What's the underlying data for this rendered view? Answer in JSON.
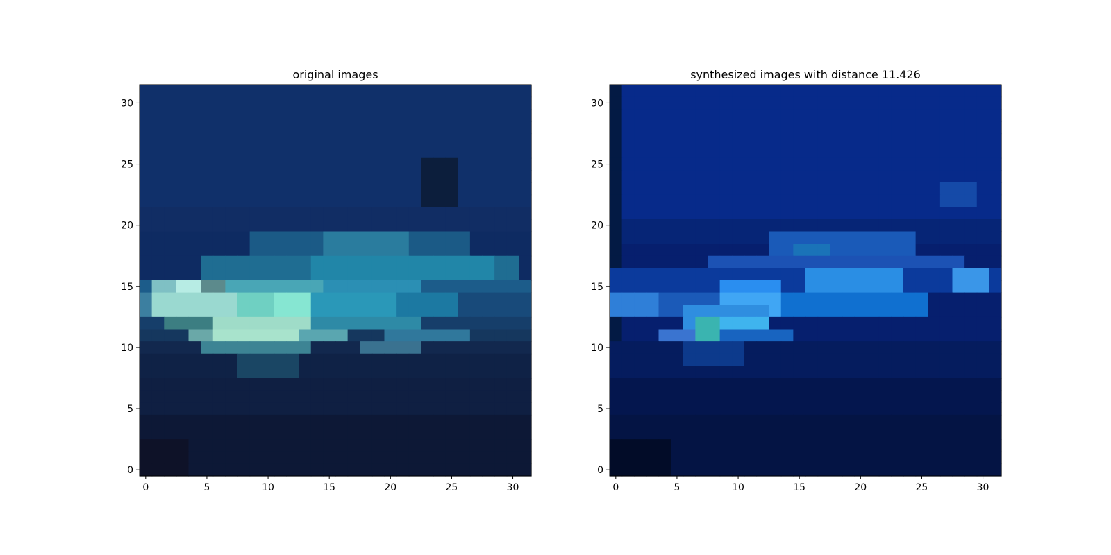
{
  "chart_data": [
    {
      "type": "heatmap",
      "title": "original images",
      "xlabel": "",
      "ylabel": "",
      "x_ticks": [
        0,
        5,
        10,
        15,
        20,
        25,
        30
      ],
      "y_ticks": [
        0,
        5,
        10,
        15,
        20,
        25,
        30
      ],
      "xlim": [
        -0.5,
        31.5
      ],
      "ylim": [
        31.5,
        -0.5
      ],
      "grid": false,
      "pixel_grid": {
        "rows": 32,
        "cols": 32
      },
      "background_color": "#0e2b62",
      "regions": [
        {
          "rows": [
            0,
            9
          ],
          "cols": [
            0,
            31
          ],
          "color": "#10306a"
        },
        {
          "rows": [
            6,
            9
          ],
          "cols": [
            23,
            25
          ],
          "color": "#0c1e3c"
        },
        {
          "rows": [
            10,
            11
          ],
          "cols": [
            0,
            31
          ],
          "color": "#112d64"
        },
        {
          "rows": [
            12,
            13
          ],
          "cols": [
            9,
            26
          ],
          "color": "#1b5a86"
        },
        {
          "rows": [
            12,
            13
          ],
          "cols": [
            15,
            21
          ],
          "color": "#2a7c9e"
        },
        {
          "rows": [
            14,
            15
          ],
          "cols": [
            5,
            30
          ],
          "color": "#1f6d92"
        },
        {
          "rows": [
            14,
            15
          ],
          "cols": [
            14,
            28
          ],
          "color": "#2186a8"
        },
        {
          "rows": [
            16,
            16
          ],
          "cols": [
            0,
            31
          ],
          "color": "#1c5c8a"
        },
        {
          "rows": [
            16,
            16
          ],
          "cols": [
            1,
            4
          ],
          "color": "#7fc0c4"
        },
        {
          "rows": [
            16,
            16
          ],
          "cols": [
            3,
            4
          ],
          "color": "#b7ece4"
        },
        {
          "rows": [
            16,
            16
          ],
          "cols": [
            5,
            6
          ],
          "color": "#5c8a8c"
        },
        {
          "rows": [
            16,
            16
          ],
          "cols": [
            7,
            14
          ],
          "color": "#49a6b6"
        },
        {
          "rows": [
            16,
            16
          ],
          "cols": [
            15,
            22
          ],
          "color": "#2b8fb4"
        },
        {
          "rows": [
            17,
            18
          ],
          "cols": [
            0,
            31
          ],
          "color": "#184a7a"
        },
        {
          "rows": [
            17,
            18
          ],
          "cols": [
            0,
            1
          ],
          "color": "#3c7fa0"
        },
        {
          "rows": [
            17,
            18
          ],
          "cols": [
            1,
            7
          ],
          "color": "#9ad9d0"
        },
        {
          "rows": [
            17,
            18
          ],
          "cols": [
            8,
            13
          ],
          "color": "#6fd0c2"
        },
        {
          "rows": [
            17,
            18
          ],
          "cols": [
            11,
            13
          ],
          "color": "#86e6d2"
        },
        {
          "rows": [
            17,
            18
          ],
          "cols": [
            14,
            20
          ],
          "color": "#2a98b8"
        },
        {
          "rows": [
            17,
            18
          ],
          "cols": [
            21,
            25
          ],
          "color": "#1c79a2"
        },
        {
          "rows": [
            19,
            19
          ],
          "cols": [
            0,
            31
          ],
          "color": "#163e6a"
        },
        {
          "rows": [
            19,
            19
          ],
          "cols": [
            2,
            5
          ],
          "color": "#3c7e82"
        },
        {
          "rows": [
            19,
            19
          ],
          "cols": [
            6,
            13
          ],
          "color": "#9fdcc8"
        },
        {
          "rows": [
            19,
            19
          ],
          "cols": [
            14,
            22
          ],
          "color": "#2e8aa6"
        },
        {
          "rows": [
            20,
            20
          ],
          "cols": [
            0,
            31
          ],
          "color": "#15375e"
        },
        {
          "rows": [
            20,
            20
          ],
          "cols": [
            4,
            6
          ],
          "color": "#6aa8a8"
        },
        {
          "rows": [
            20,
            20
          ],
          "cols": [
            6,
            12
          ],
          "color": "#a8e3cc"
        },
        {
          "rows": [
            20,
            20
          ],
          "cols": [
            13,
            16
          ],
          "color": "#5aa6b0"
        },
        {
          "rows": [
            20,
            20
          ],
          "cols": [
            20,
            26
          ],
          "color": "#30789c"
        },
        {
          "rows": [
            21,
            21
          ],
          "cols": [
            0,
            31
          ],
          "color": "#12284e"
        },
        {
          "rows": [
            21,
            21
          ],
          "cols": [
            5,
            13
          ],
          "color": "#3d8494"
        },
        {
          "rows": [
            21,
            21
          ],
          "cols": [
            18,
            22
          ],
          "color": "#3a7290"
        },
        {
          "rows": [
            22,
            23
          ],
          "cols": [
            0,
            31
          ],
          "color": "#0f2246"
        },
        {
          "rows": [
            22,
            23
          ],
          "cols": [
            8,
            12
          ],
          "color": "#1a4664"
        },
        {
          "rows": [
            24,
            26
          ],
          "cols": [
            0,
            31
          ],
          "color": "#0f1f42"
        },
        {
          "rows": [
            27,
            31
          ],
          "cols": [
            0,
            31
          ],
          "color": "#0d1836"
        },
        {
          "rows": [
            29,
            31
          ],
          "cols": [
            0,
            3
          ],
          "color": "#0e1228"
        }
      ]
    },
    {
      "type": "heatmap",
      "title": "synthesized images with distance 11.426",
      "xlabel": "",
      "ylabel": "",
      "x_ticks": [
        0,
        5,
        10,
        15,
        20,
        25,
        30
      ],
      "y_ticks": [
        0,
        5,
        10,
        15,
        20,
        25,
        30
      ],
      "xlim": [
        -0.5,
        31.5
      ],
      "ylim": [
        31.5,
        -0.5
      ],
      "grid": false,
      "pixel_grid": {
        "rows": 32,
        "cols": 32
      },
      "background_color": "#061f6e",
      "regions": [
        {
          "rows": [
            0,
            31
          ],
          "cols": [
            0,
            0
          ],
          "color": "#031a44"
        },
        {
          "rows": [
            0,
            10
          ],
          "cols": [
            1,
            31
          ],
          "color": "#072a8a"
        },
        {
          "rows": [
            8,
            9
          ],
          "cols": [
            27,
            29
          ],
          "color": "#154aa8"
        },
        {
          "rows": [
            11,
            12
          ],
          "cols": [
            1,
            31
          ],
          "color": "#062576"
        },
        {
          "rows": [
            12,
            13
          ],
          "cols": [
            13,
            24
          ],
          "color": "#1a5ab8"
        },
        {
          "rows": [
            13,
            14
          ],
          "cols": [
            15,
            17
          ],
          "color": "#1a73b8"
        },
        {
          "rows": [
            14,
            14
          ],
          "cols": [
            8,
            28
          ],
          "color": "#1c52b4"
        },
        {
          "rows": [
            15,
            16
          ],
          "cols": [
            0,
            31
          ],
          "color": "#0b3a9c"
        },
        {
          "rows": [
            15,
            16
          ],
          "cols": [
            16,
            23
          ],
          "color": "#2a8ee4"
        },
        {
          "rows": [
            15,
            16
          ],
          "cols": [
            28,
            30
          ],
          "color": "#3a96e8"
        },
        {
          "rows": [
            16,
            17
          ],
          "cols": [
            9,
            13
          ],
          "color": "#2a8ef0"
        },
        {
          "rows": [
            17,
            18
          ],
          "cols": [
            0,
            3
          ],
          "color": "#2f7fd8"
        },
        {
          "rows": [
            17,
            18
          ],
          "cols": [
            4,
            8
          ],
          "color": "#1b5ab8"
        },
        {
          "rows": [
            17,
            18
          ],
          "cols": [
            9,
            13
          ],
          "color": "#40a6f4"
        },
        {
          "rows": [
            17,
            18
          ],
          "cols": [
            14,
            25
          ],
          "color": "#1070d0"
        },
        {
          "rows": [
            18,
            19
          ],
          "cols": [
            6,
            12
          ],
          "color": "#2f8ee0"
        },
        {
          "rows": [
            19,
            19
          ],
          "cols": [
            8,
            12
          ],
          "color": "#3fb4ee"
        },
        {
          "rows": [
            19,
            20
          ],
          "cols": [
            7,
            8
          ],
          "color": "#3ab4b0"
        },
        {
          "rows": [
            20,
            20
          ],
          "cols": [
            4,
            6
          ],
          "color": "#3a74d0"
        },
        {
          "rows": [
            20,
            21
          ],
          "cols": [
            9,
            14
          ],
          "color": "#1864c0"
        },
        {
          "rows": [
            21,
            23
          ],
          "cols": [
            0,
            31
          ],
          "color": "#051c5e"
        },
        {
          "rows": [
            21,
            22
          ],
          "cols": [
            6,
            10
          ],
          "color": "#0d3a8c"
        },
        {
          "rows": [
            24,
            26
          ],
          "cols": [
            0,
            31
          ],
          "color": "#04164e"
        },
        {
          "rows": [
            27,
            31
          ],
          "cols": [
            0,
            31
          ],
          "color": "#041444"
        },
        {
          "rows": [
            29,
            31
          ],
          "cols": [
            0,
            4
          ],
          "color": "#020c28"
        }
      ]
    }
  ]
}
